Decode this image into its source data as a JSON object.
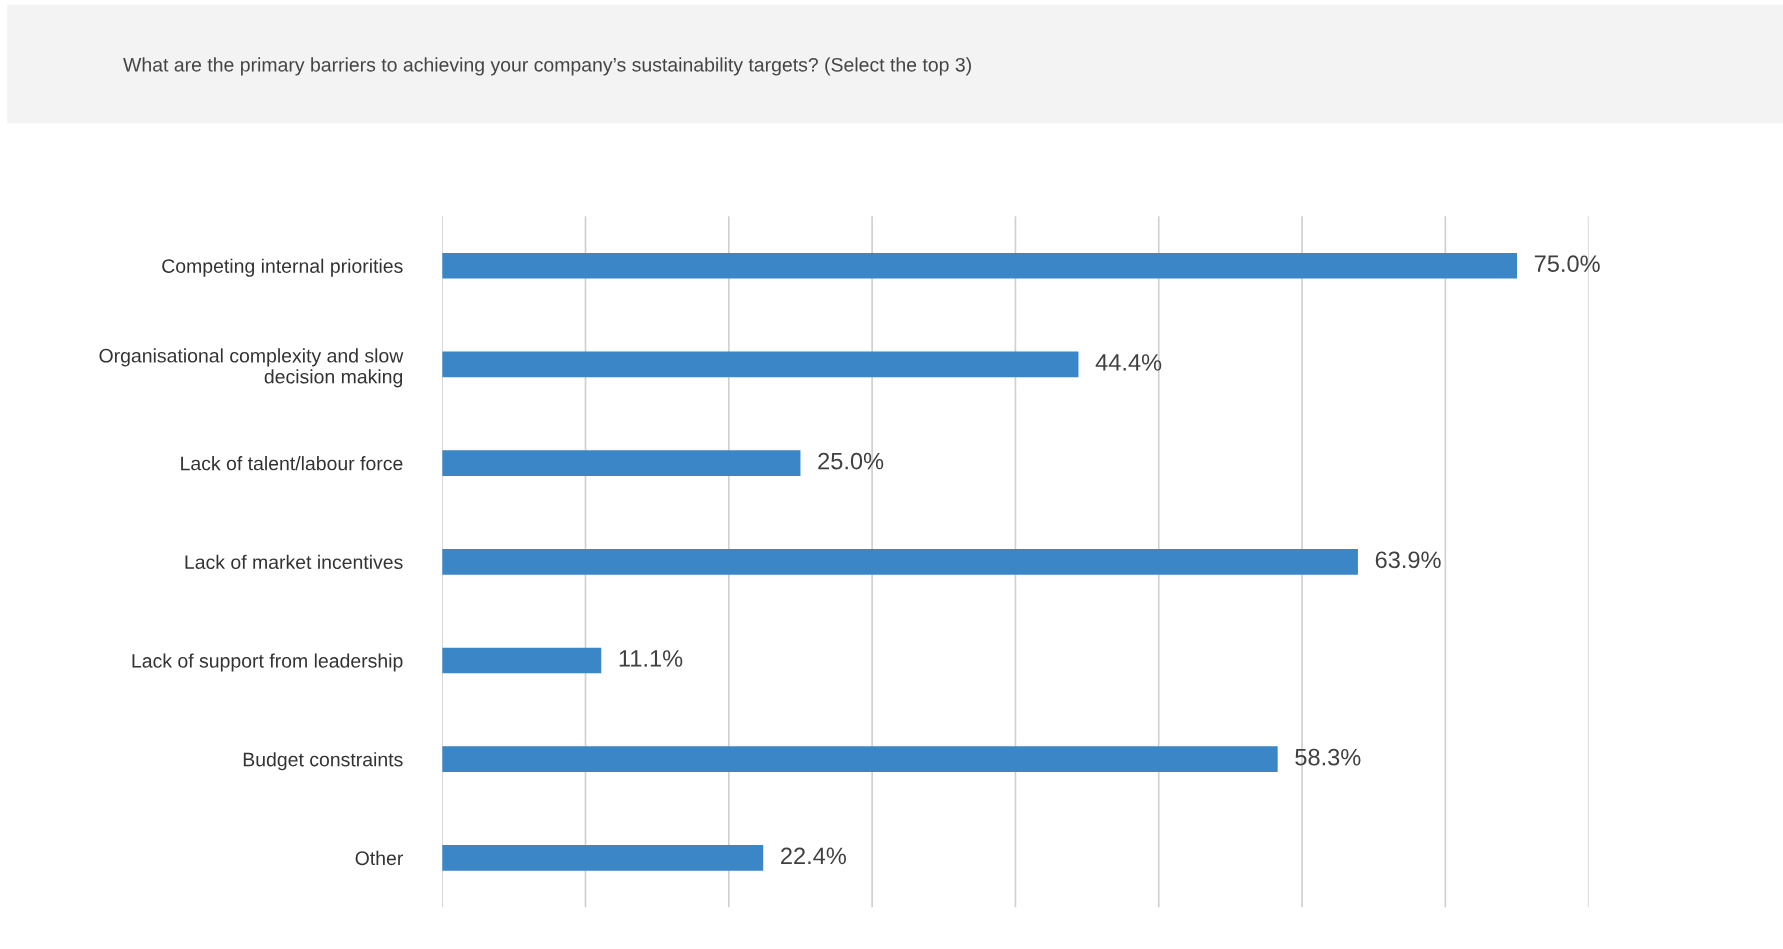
{
  "chart_data": {
    "type": "bar",
    "orientation": "horizontal",
    "title": "What are the primary barriers to achieving your company’s sustainability targets? (Select the top 3)",
    "categories": [
      "Competing internal priorities",
      "Organisational complexity and slow\ndecision making",
      "Lack of talent/labour force",
      "Lack of market incentives",
      "Lack of support from leadership",
      "Budget constraints",
      "Other"
    ],
    "values": [
      75.0,
      44.4,
      25.0,
      63.9,
      11.1,
      58.3,
      22.4
    ],
    "value_labels": [
      "75.0%",
      "44.4%",
      "25.0%",
      "63.9%",
      "11.1%",
      "58.3%",
      "22.4%"
    ],
    "color": "#3a86c6",
    "xlim": [
      0,
      80
    ],
    "xticks": [
      {
        "value": 0,
        "label": null
      },
      {
        "value": 10,
        "label": null
      },
      {
        "value": 20,
        "label": null
      },
      {
        "value": 30,
        "label": null
      },
      {
        "value": 40,
        "label": null
      },
      {
        "value": 50,
        "label": null
      },
      {
        "value": 60,
        "label": null
      },
      {
        "value": 70,
        "label": null
      },
      {
        "value": 80,
        "label": null
      }
    ],
    "grid": "x",
    "tick_labels": "y"
  }
}
